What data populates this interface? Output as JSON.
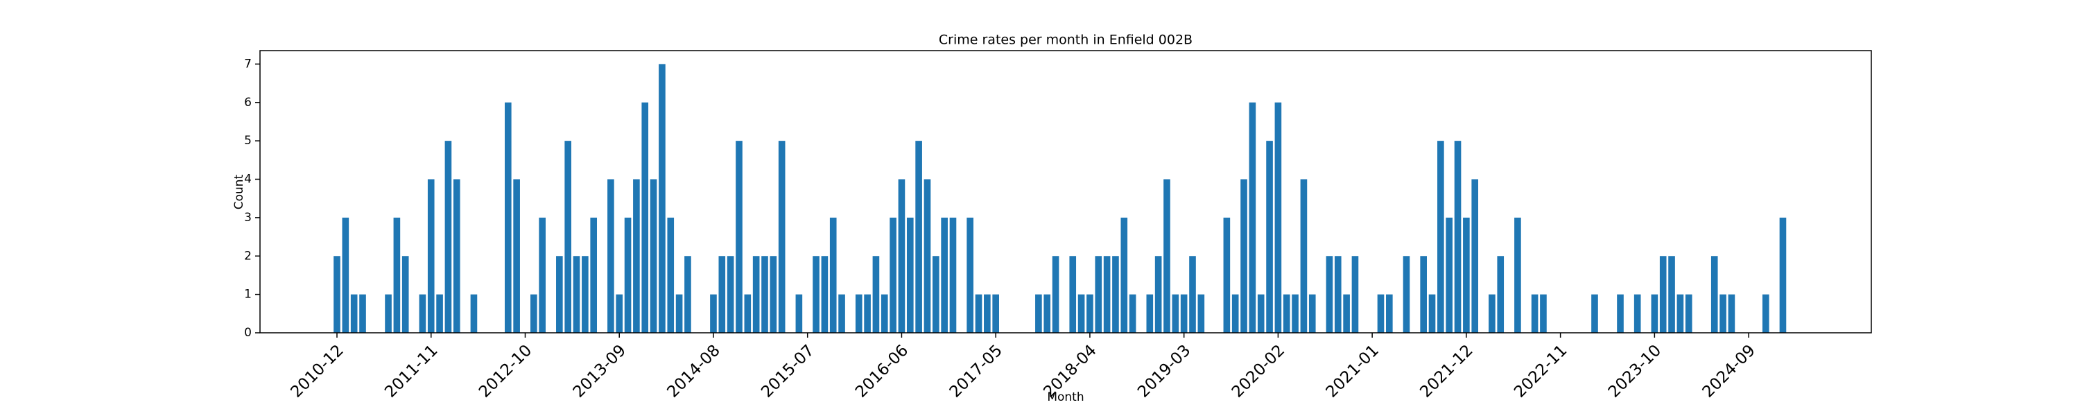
{
  "chart_data": {
    "type": "bar",
    "title": "Crime rates per month in Enfield 002B",
    "x_label": "Month",
    "y_label": "Count",
    "color": "#1f77b4",
    "categories": [
      "2010-12",
      null,
      null,
      null,
      null,
      null,
      null,
      null,
      null,
      null,
      null,
      "2011-11",
      null,
      null,
      null,
      null,
      null,
      null,
      null,
      null,
      null,
      null,
      "2012-10",
      null,
      null,
      null,
      null,
      null,
      null,
      null,
      null,
      null,
      null,
      "2013-09",
      null,
      null,
      null,
      null,
      null,
      null,
      null,
      null,
      null,
      null,
      "2014-08",
      null,
      null,
      null,
      null,
      null,
      null,
      null,
      null,
      null,
      null,
      "2015-07",
      null,
      null,
      null,
      null,
      null,
      null,
      null,
      null,
      null,
      null,
      "2016-06",
      null,
      null,
      null,
      null,
      null,
      null,
      null,
      null,
      null,
      null,
      "2017-05",
      null,
      null,
      null,
      null,
      null,
      null,
      null,
      null,
      null,
      null,
      "2018-04",
      null,
      null,
      null,
      null,
      null,
      null,
      null,
      null,
      null,
      null,
      "2019-03",
      null,
      null,
      null,
      null,
      null,
      null,
      null,
      null,
      null,
      null,
      "2020-02",
      null,
      null,
      null,
      null,
      null,
      null,
      null,
      null,
      null,
      null,
      "2021-01",
      null,
      null,
      null,
      null,
      null,
      null,
      null,
      null,
      null,
      null,
      "2021-12",
      null,
      null,
      null,
      null,
      null,
      null,
      null,
      null,
      null,
      null,
      "2022-11",
      null,
      null,
      null,
      null,
      null,
      null,
      null,
      null,
      null,
      null,
      "2023-10",
      null,
      null,
      null,
      null,
      null,
      null,
      null,
      null,
      null,
      null,
      "2024-09",
      null,
      null,
      null,
      null
    ],
    "values": [
      2,
      3,
      1,
      1,
      0,
      0,
      1,
      3,
      2,
      0,
      1,
      4,
      1,
      5,
      4,
      0,
      1,
      0,
      0,
      0,
      6,
      4,
      0,
      1,
      3,
      0,
      2,
      5,
      2,
      2,
      3,
      0,
      4,
      1,
      3,
      4,
      6,
      4,
      7,
      3,
      1,
      2,
      0,
      0,
      1,
      2,
      2,
      5,
      1,
      2,
      2,
      2,
      5,
      0,
      1,
      0,
      2,
      2,
      3,
      1,
      0,
      1,
      1,
      2,
      1,
      3,
      4,
      3,
      5,
      4,
      2,
      3,
      3,
      0,
      3,
      1,
      1,
      1,
      0,
      0,
      0,
      0,
      1,
      1,
      2,
      0,
      2,
      1,
      1,
      2,
      2,
      2,
      3,
      1,
      0,
      1,
      2,
      4,
      1,
      1,
      2,
      1,
      0,
      0,
      3,
      1,
      4,
      6,
      1,
      5,
      6,
      1,
      1,
      4,
      1,
      0,
      2,
      2,
      1,
      2,
      0,
      0,
      1,
      1,
      0,
      2,
      0,
      2,
      1,
      5,
      3,
      5,
      3,
      4,
      0,
      1,
      2,
      0,
      3,
      0,
      1,
      1,
      0,
      0,
      0,
      0,
      0,
      1,
      0,
      0,
      1,
      0,
      1,
      0,
      1,
      2,
      2,
      1,
      1,
      0,
      0,
      2,
      1,
      1,
      0,
      0,
      0,
      1,
      0,
      3
    ],
    "ylim": [
      0,
      7.35
    ],
    "yticks": [
      0,
      1,
      2,
      3,
      4,
      5,
      6,
      7
    ]
  }
}
